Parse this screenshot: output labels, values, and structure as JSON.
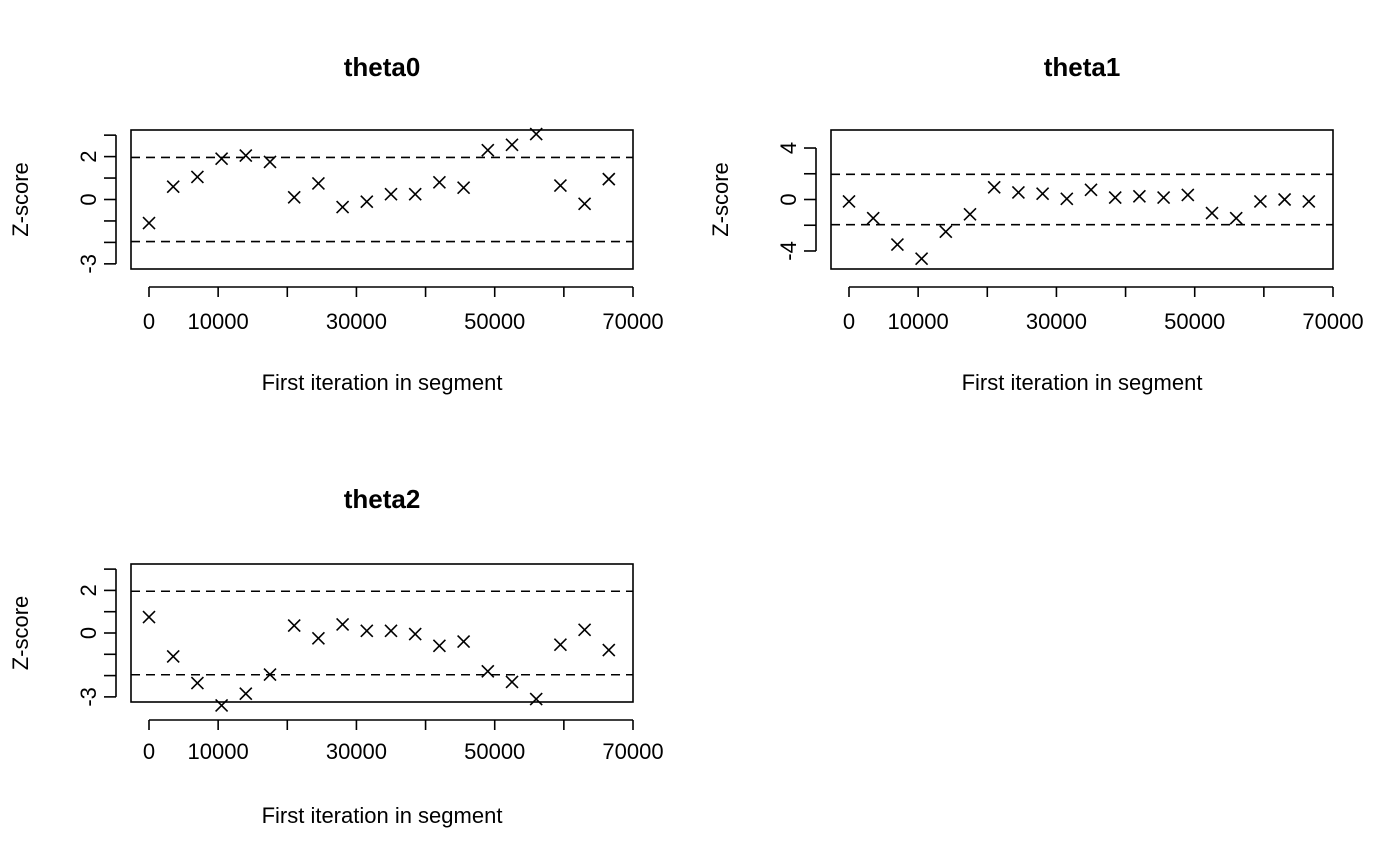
{
  "chart_data": [
    {
      "type": "scatter",
      "title": "theta0",
      "xlabel": "First iteration in segment",
      "ylabel": "Z-score",
      "xlim": [
        0,
        70000
      ],
      "ylim": [
        -3,
        3
      ],
      "x_ticks": [
        0,
        10000,
        30000,
        50000,
        70000
      ],
      "x_tick_labels": [
        "0",
        "10000",
        "30000",
        "50000",
        "70000"
      ],
      "y_ticks": [
        -3,
        -2,
        -1,
        0,
        1,
        2,
        3
      ],
      "y_tick_labels": [
        "-3",
        "",
        "",
        "0",
        "",
        "2",
        ""
      ],
      "reference_lines": [
        -1.96,
        1.96
      ],
      "x": [
        0,
        3500,
        7000,
        10500,
        14000,
        17500,
        21000,
        24500,
        28000,
        31500,
        35000,
        38500,
        42000,
        45500,
        49000,
        52500,
        56000,
        59500,
        63000,
        66500
      ],
      "y": [
        -1.1,
        0.6,
        1.05,
        1.9,
        2.05,
        1.75,
        0.1,
        0.75,
        -0.35,
        -0.1,
        0.25,
        0.25,
        0.8,
        0.55,
        2.3,
        2.55,
        3.05,
        0.65,
        -0.2,
        0.95
      ],
      "marker": "x"
    },
    {
      "type": "scatter",
      "title": "theta1",
      "xlabel": "First iteration in segment",
      "ylabel": "Z-score",
      "xlim": [
        0,
        70000
      ],
      "ylim": [
        -5,
        5
      ],
      "x_ticks": [
        0,
        10000,
        30000,
        50000,
        70000
      ],
      "x_tick_labels": [
        "0",
        "10000",
        "30000",
        "50000",
        "70000"
      ],
      "y_ticks": [
        -4,
        -2,
        0,
        2,
        4
      ],
      "y_tick_labels": [
        "-4",
        "",
        "0",
        "",
        "4"
      ],
      "reference_lines": [
        -1.96,
        1.96
      ],
      "x": [
        0,
        3500,
        7000,
        10500,
        14000,
        17500,
        21000,
        24500,
        28000,
        31500,
        35000,
        38500,
        42000,
        45500,
        49000,
        52500,
        56000,
        59500,
        63000,
        66500
      ],
      "y": [
        -0.15,
        -1.45,
        -3.5,
        -4.6,
        -2.5,
        -1.15,
        0.95,
        0.55,
        0.45,
        0.05,
        0.75,
        0.15,
        0.25,
        0.15,
        0.35,
        -1.05,
        -1.45,
        -0.15,
        0.0,
        -0.15
      ],
      "marker": "x"
    },
    {
      "type": "scatter",
      "title": "theta2",
      "xlabel": "First iteration in segment",
      "ylabel": "Z-score",
      "xlim": [
        0,
        70000
      ],
      "ylim": [
        -3,
        3
      ],
      "x_ticks": [
        0,
        10000,
        30000,
        50000,
        70000
      ],
      "x_tick_labels": [
        "0",
        "10000",
        "30000",
        "50000",
        "70000"
      ],
      "y_ticks": [
        -3,
        -2,
        -1,
        0,
        1,
        2,
        3
      ],
      "y_tick_labels": [
        "-3",
        "",
        "",
        "0",
        "",
        "2",
        ""
      ],
      "reference_lines": [
        -1.96,
        1.96
      ],
      "x": [
        0,
        3500,
        7000,
        10500,
        14000,
        17500,
        21000,
        24500,
        28000,
        31500,
        35000,
        38500,
        42000,
        45500,
        49000,
        52500,
        56000,
        59500,
        63000,
        66500
      ],
      "y": [
        0.75,
        -1.1,
        -2.35,
        -3.4,
        -2.85,
        -1.95,
        0.35,
        -0.25,
        0.4,
        0.1,
        0.1,
        -0.05,
        -0.6,
        -0.4,
        -1.8,
        -2.3,
        -3.1,
        -0.55,
        0.15,
        -0.8
      ],
      "marker": "x"
    }
  ]
}
